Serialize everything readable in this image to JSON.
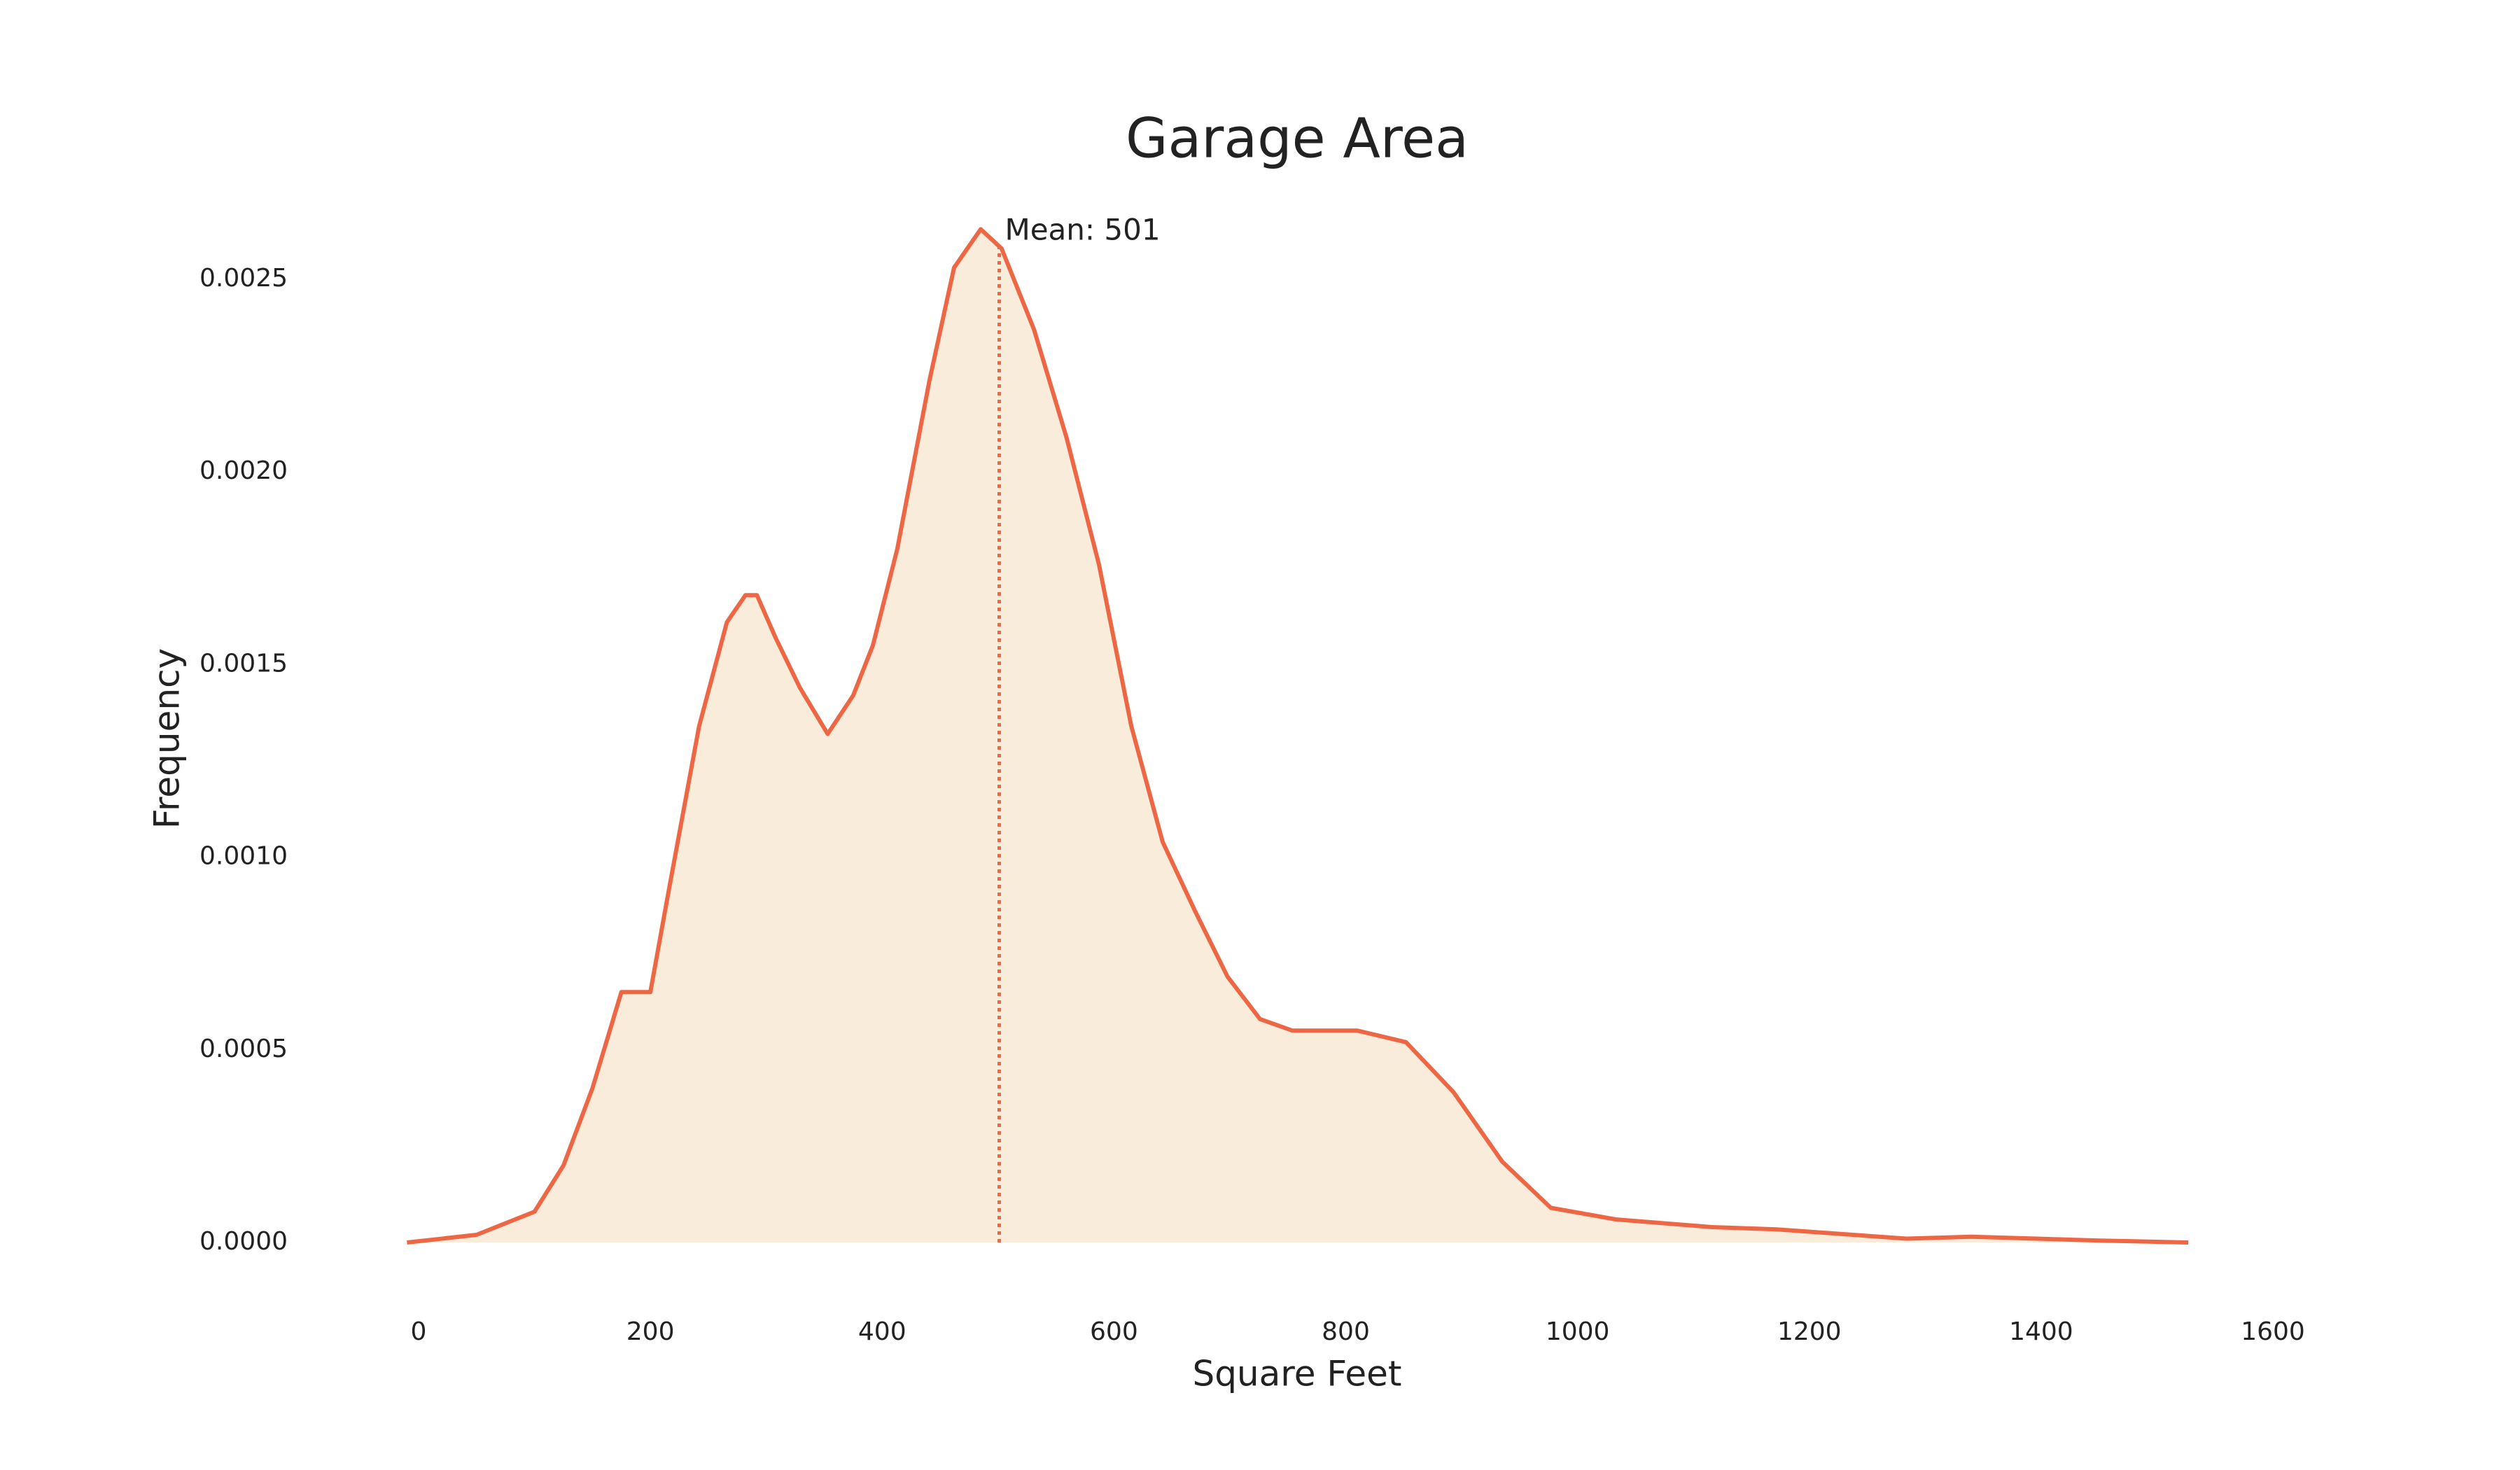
{
  "chart_data": {
    "type": "area",
    "title": "Garage Area",
    "x_label": "Square Feet",
    "y_label": "Frequency",
    "x": [
      -10,
      50,
      100,
      125,
      150,
      175,
      200,
      215,
      242,
      266,
      282,
      292,
      308,
      329,
      353,
      375,
      392,
      413,
      441,
      462,
      485,
      503,
      531,
      559,
      587,
      615,
      642,
      670,
      698,
      726,
      754,
      810,
      852,
      893,
      935,
      977,
      1033,
      1116,
      1172,
      1284,
      1340,
      1451,
      1527
    ],
    "values": [
      0,
      2e-05,
      8e-05,
      0.0002,
      0.0004,
      0.00065,
      0.00065,
      0.0009,
      0.00134,
      0.00161,
      0.00168,
      0.00168,
      0.00157,
      0.00144,
      0.00132,
      0.00142,
      0.00155,
      0.0018,
      0.00224,
      0.00253,
      0.00263,
      0.00258,
      0.00237,
      0.00209,
      0.00176,
      0.00134,
      0.00104,
      0.00086,
      0.00069,
      0.00058,
      0.00055,
      0.00055,
      0.00052,
      0.00039,
      0.00021,
      9e-05,
      6e-05,
      4e-05,
      3.4e-05,
      1e-05,
      1.5e-05,
      5e-06,
      0
    ],
    "color": "#ee6745",
    "fill": "#faecdb",
    "mean": 501,
    "mean_label": "Mean: 501",
    "xlim": [
      0,
      1600
    ],
    "xticks": [
      0,
      200,
      400,
      600,
      800,
      1000,
      1200,
      1400,
      1600
    ],
    "ylim": [
      0,
      0.0025
    ],
    "yticks": [
      {
        "value": 0,
        "label": "0.0000"
      },
      {
        "value": 0.0005,
        "label": "0.0005"
      },
      {
        "value": 0.001,
        "label": "0.0010"
      },
      {
        "value": 0.0015,
        "label": "0.0015"
      },
      {
        "value": 0.002,
        "label": "0.0020"
      },
      {
        "value": 0.0025,
        "label": "0.0025"
      }
    ]
  }
}
